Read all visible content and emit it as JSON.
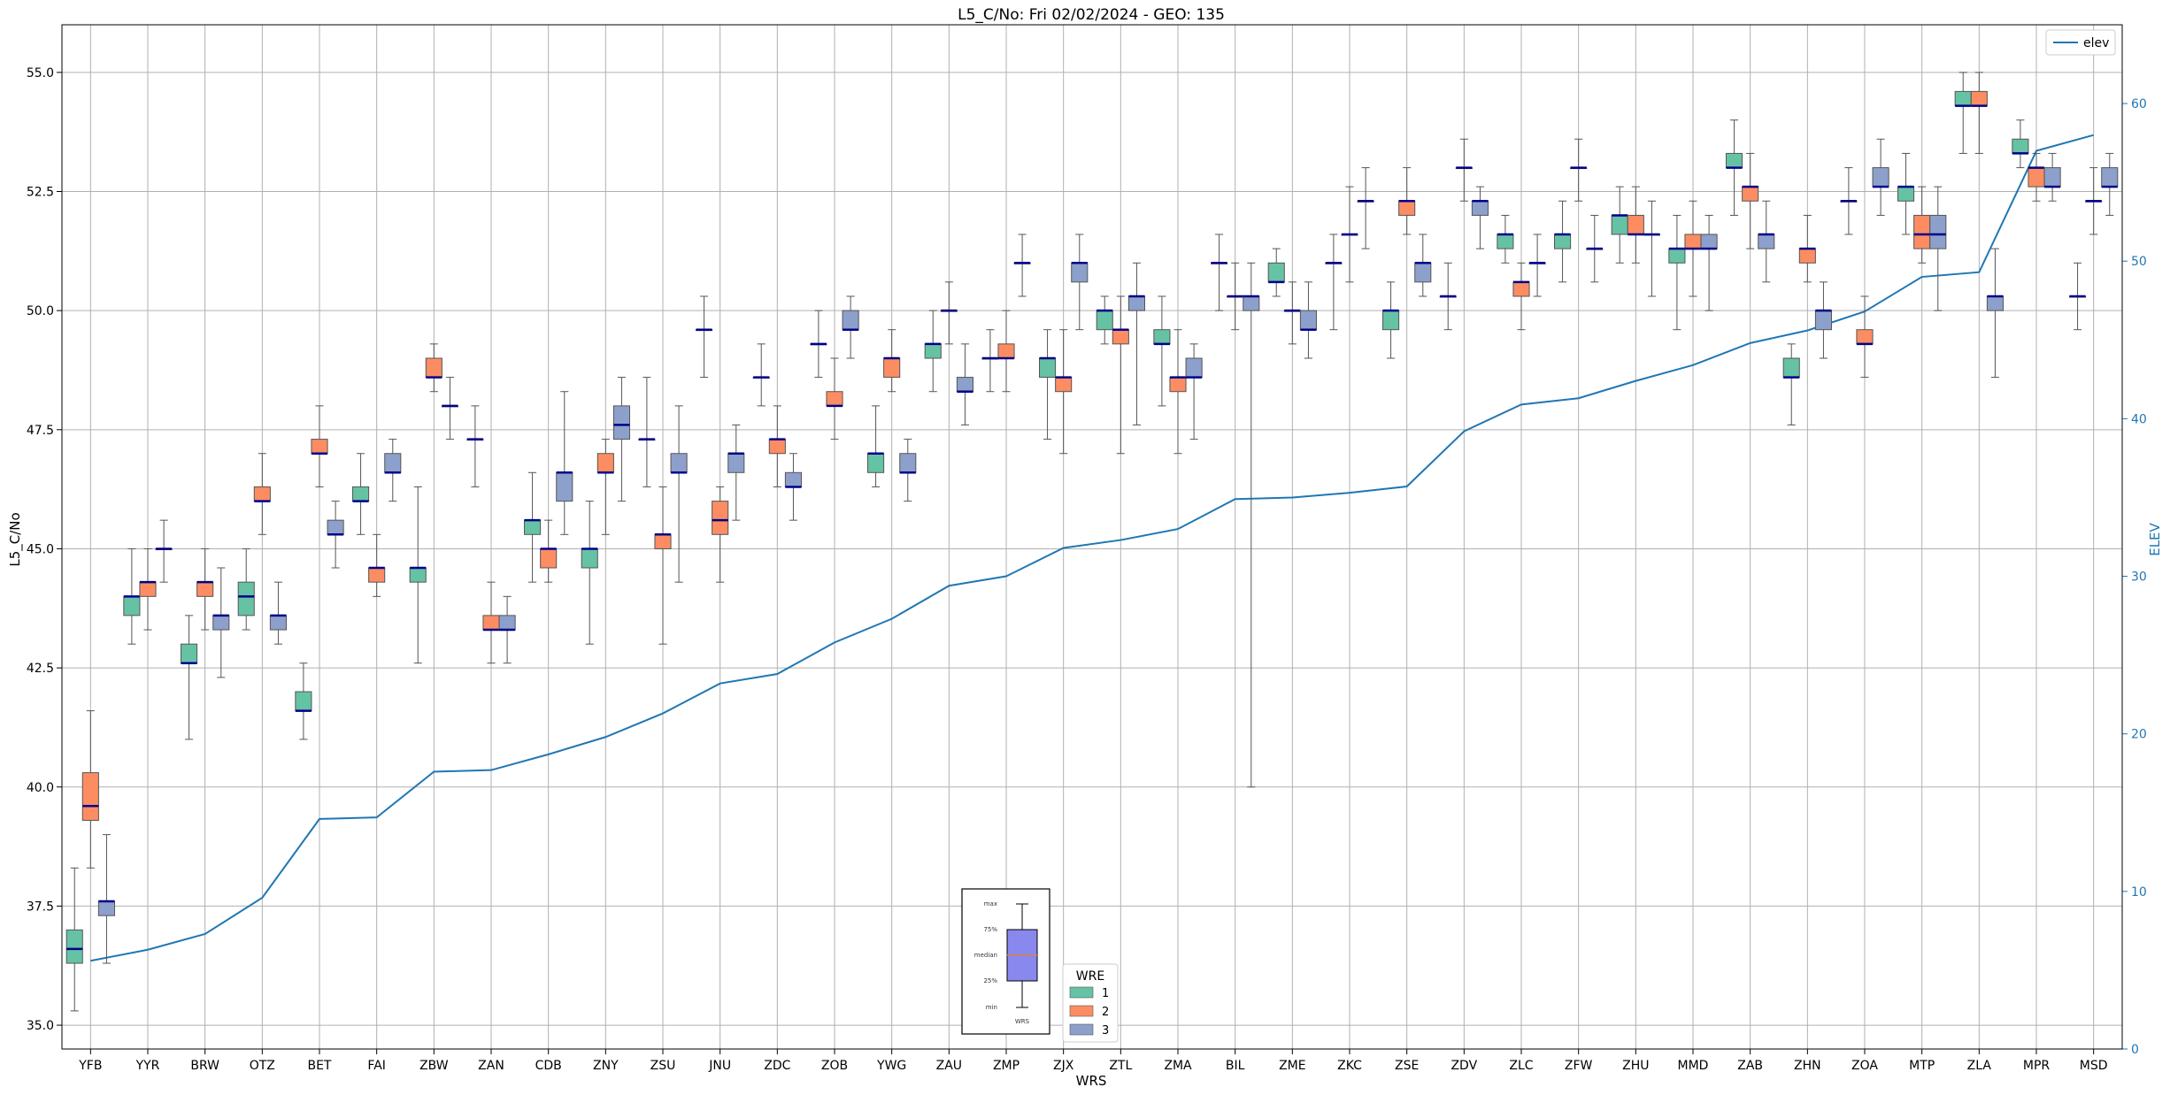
{
  "chart_data": {
    "type": "box",
    "title": "L5_C/No: Fri 02/02/2024 - GEO: 135",
    "xlabel": "WRS",
    "ylabel": "L5_C/No",
    "y2label": "ELEV",
    "ylim": [
      34.5,
      56.0
    ],
    "y2lim": [
      0,
      65
    ],
    "yticks": [
      "35.0",
      "37.5",
      "40.0",
      "42.5",
      "45.0",
      "47.5",
      "50.0",
      "52.5",
      "55.0"
    ],
    "y2ticks": [
      "0",
      "10",
      "20",
      "30",
      "40",
      "50",
      "60"
    ],
    "grid": true,
    "categories": [
      "YFB",
      "YYR",
      "BRW",
      "OTZ",
      "BET",
      "FAI",
      "ZBW",
      "ZAN",
      "CDB",
      "ZNY",
      "ZSU",
      "JNU",
      "ZDC",
      "ZOB",
      "YWG",
      "ZAU",
      "ZMP",
      "ZJX",
      "ZTL",
      "ZMA",
      "BIL",
      "ZME",
      "ZKC",
      "ZSE",
      "ZDV",
      "ZLC",
      "ZFW",
      "ZHU",
      "MMD",
      "ZAB",
      "ZHN",
      "ZOA",
      "MTP",
      "ZLA",
      "MPR",
      "MSD"
    ],
    "elev_series": {
      "name": "elev",
      "color": "#1f77b4",
      "values": [
        5.6,
        6.3,
        7.3,
        9.6,
        14.6,
        14.7,
        17.6,
        17.7,
        18.7,
        19.8,
        21.3,
        23.2,
        23.8,
        25.8,
        27.3,
        29.4,
        30.0,
        31.8,
        32.3,
        33.0,
        34.9,
        35.0,
        35.3,
        35.7,
        39.2,
        40.9,
        41.3,
        42.4,
        43.4,
        44.8,
        45.6,
        46.8,
        49.0,
        49.3,
        57.0,
        58.0
      ]
    },
    "legend_wre": {
      "title": "WRE",
      "entries": [
        {
          "label": "1",
          "color": "#66c2a5"
        },
        {
          "label": "2",
          "color": "#fc8d62"
        },
        {
          "label": "3",
          "color": "#8da0cb"
        }
      ]
    },
    "legend_elev": "elev",
    "box_legend_labels": [
      "max",
      "75%",
      "median",
      "25%",
      "min"
    ],
    "box_legend_xlabel": "WRS",
    "boxes": [
      {
        "cat": "YFB",
        "wre": 1,
        "min": 35.3,
        "q1": 36.3,
        "med": 36.6,
        "q3": 37.0,
        "max": 38.3
      },
      {
        "cat": "YFB",
        "wre": 2,
        "min": 38.3,
        "q1": 39.3,
        "med": 39.6,
        "q3": 40.3,
        "max": 41.6
      },
      {
        "cat": "YFB",
        "wre": 3,
        "min": 36.3,
        "q1": 37.3,
        "med": 37.6,
        "q3": 37.6,
        "max": 39.0
      },
      {
        "cat": "YYR",
        "wre": 1,
        "min": 43.0,
        "q1": 43.6,
        "med": 44.0,
        "q3": 44.0,
        "max": 45.0
      },
      {
        "cat": "YYR",
        "wre": 2,
        "min": 43.3,
        "q1": 44.0,
        "med": 44.3,
        "q3": 44.3,
        "max": 45.0
      },
      {
        "cat": "YYR",
        "wre": 3,
        "min": 44.3,
        "q1": 45.0,
        "med": 45.0,
        "q3": 45.0,
        "max": 45.6
      },
      {
        "cat": "BRW",
        "wre": 1,
        "min": 41.0,
        "q1": 42.6,
        "med": 42.6,
        "q3": 43.0,
        "max": 43.6
      },
      {
        "cat": "BRW",
        "wre": 2,
        "min": 43.3,
        "q1": 44.0,
        "med": 44.3,
        "q3": 44.3,
        "max": 45.0
      },
      {
        "cat": "BRW",
        "wre": 3,
        "min": 42.3,
        "q1": 43.3,
        "med": 43.6,
        "q3": 43.6,
        "max": 44.6
      },
      {
        "cat": "OTZ",
        "wre": 1,
        "min": 43.3,
        "q1": 43.6,
        "med": 44.0,
        "q3": 44.3,
        "max": 45.0
      },
      {
        "cat": "OTZ",
        "wre": 2,
        "min": 45.3,
        "q1": 46.0,
        "med": 46.0,
        "q3": 46.3,
        "max": 47.0
      },
      {
        "cat": "OTZ",
        "wre": 3,
        "min": 43.0,
        "q1": 43.3,
        "med": 43.6,
        "q3": 43.6,
        "max": 44.3
      },
      {
        "cat": "BET",
        "wre": 1,
        "min": 41.0,
        "q1": 41.6,
        "med": 41.6,
        "q3": 42.0,
        "max": 42.6
      },
      {
        "cat": "BET",
        "wre": 2,
        "min": 46.3,
        "q1": 47.0,
        "med": 47.0,
        "q3": 47.3,
        "max": 48.0
      },
      {
        "cat": "BET",
        "wre": 3,
        "min": 44.6,
        "q1": 45.3,
        "med": 45.3,
        "q3": 45.6,
        "max": 46.0
      },
      {
        "cat": "FAI",
        "wre": 1,
        "min": 45.3,
        "q1": 46.0,
        "med": 46.0,
        "q3": 46.3,
        "max": 47.0
      },
      {
        "cat": "FAI",
        "wre": 2,
        "min": 44.0,
        "q1": 44.3,
        "med": 44.6,
        "q3": 44.6,
        "max": 45.3
      },
      {
        "cat": "FAI",
        "wre": 3,
        "min": 46.0,
        "q1": 46.6,
        "med": 46.6,
        "q3": 47.0,
        "max": 47.3
      },
      {
        "cat": "ZBW",
        "wre": 1,
        "min": 42.6,
        "q1": 44.3,
        "med": 44.6,
        "q3": 44.6,
        "max": 46.3
      },
      {
        "cat": "ZBW",
        "wre": 2,
        "min": 48.3,
        "q1": 48.6,
        "med": 48.6,
        "q3": 49.0,
        "max": 49.3
      },
      {
        "cat": "ZBW",
        "wre": 3,
        "min": 47.3,
        "q1": 48.0,
        "med": 48.0,
        "q3": 48.0,
        "max": 48.6
      },
      {
        "cat": "ZAN",
        "wre": 1,
        "min": 46.3,
        "q1": 47.3,
        "med": 47.3,
        "q3": 47.3,
        "max": 48.0
      },
      {
        "cat": "ZAN",
        "wre": 2,
        "min": 42.6,
        "q1": 43.3,
        "med": 43.3,
        "q3": 43.6,
        "max": 44.3
      },
      {
        "cat": "ZAN",
        "wre": 3,
        "min": 42.6,
        "q1": 43.3,
        "med": 43.3,
        "q3": 43.6,
        "max": 44.0
      },
      {
        "cat": "CDB",
        "wre": 1,
        "min": 44.3,
        "q1": 45.3,
        "med": 45.6,
        "q3": 45.6,
        "max": 46.6
      },
      {
        "cat": "CDB",
        "wre": 2,
        "min": 44.3,
        "q1": 44.6,
        "med": 45.0,
        "q3": 45.0,
        "max": 45.6
      },
      {
        "cat": "CDB",
        "wre": 3,
        "min": 45.3,
        "q1": 46.0,
        "med": 46.6,
        "q3": 46.6,
        "max": 48.3
      },
      {
        "cat": "ZNY",
        "wre": 1,
        "min": 43.0,
        "q1": 44.6,
        "med": 45.0,
        "q3": 45.0,
        "max": 46.0
      },
      {
        "cat": "ZNY",
        "wre": 2,
        "min": 45.3,
        "q1": 46.6,
        "med": 46.6,
        "q3": 47.0,
        "max": 47.3
      },
      {
        "cat": "ZNY",
        "wre": 3,
        "min": 46.0,
        "q1": 47.3,
        "med": 47.6,
        "q3": 48.0,
        "max": 48.6
      },
      {
        "cat": "ZSU",
        "wre": 1,
        "min": 46.3,
        "q1": 47.3,
        "med": 47.3,
        "q3": 47.3,
        "max": 48.6
      },
      {
        "cat": "ZSU",
        "wre": 2,
        "min": 43.0,
        "q1": 45.0,
        "med": 45.3,
        "q3": 45.3,
        "max": 46.3
      },
      {
        "cat": "ZSU",
        "wre": 3,
        "min": 44.3,
        "q1": 46.6,
        "med": 46.6,
        "q3": 47.0,
        "max": 48.0
      },
      {
        "cat": "JNU",
        "wre": 1,
        "min": 48.6,
        "q1": 49.6,
        "med": 49.6,
        "q3": 49.6,
        "max": 50.3
      },
      {
        "cat": "JNU",
        "wre": 2,
        "min": 44.3,
        "q1": 45.3,
        "med": 45.6,
        "q3": 46.0,
        "max": 46.3
      },
      {
        "cat": "JNU",
        "wre": 3,
        "min": 45.6,
        "q1": 46.6,
        "med": 47.0,
        "q3": 47.0,
        "max": 47.6
      },
      {
        "cat": "ZDC",
        "wre": 1,
        "min": 48.0,
        "q1": 48.6,
        "med": 48.6,
        "q3": 48.6,
        "max": 49.3
      },
      {
        "cat": "ZDC",
        "wre": 2,
        "min": 46.3,
        "q1": 47.0,
        "med": 47.3,
        "q3": 47.3,
        "max": 48.0
      },
      {
        "cat": "ZDC",
        "wre": 3,
        "min": 45.6,
        "q1": 46.3,
        "med": 46.3,
        "q3": 46.6,
        "max": 47.0
      },
      {
        "cat": "ZOB",
        "wre": 1,
        "min": 48.6,
        "q1": 49.3,
        "med": 49.3,
        "q3": 49.3,
        "max": 50.0
      },
      {
        "cat": "ZOB",
        "wre": 2,
        "min": 47.3,
        "q1": 48.0,
        "med": 48.0,
        "q3": 48.3,
        "max": 49.0
      },
      {
        "cat": "ZOB",
        "wre": 3,
        "min": 49.0,
        "q1": 49.6,
        "med": 49.6,
        "q3": 50.0,
        "max": 50.3
      },
      {
        "cat": "YWG",
        "wre": 1,
        "min": 46.3,
        "q1": 46.6,
        "med": 47.0,
        "q3": 47.0,
        "max": 48.0
      },
      {
        "cat": "YWG",
        "wre": 2,
        "min": 48.3,
        "q1": 48.6,
        "med": 49.0,
        "q3": 49.0,
        "max": 49.6
      },
      {
        "cat": "YWG",
        "wre": 3,
        "min": 46.0,
        "q1": 46.6,
        "med": 46.6,
        "q3": 47.0,
        "max": 47.3
      },
      {
        "cat": "ZAU",
        "wre": 1,
        "min": 48.3,
        "q1": 49.0,
        "med": 49.3,
        "q3": 49.3,
        "max": 50.0
      },
      {
        "cat": "ZAU",
        "wre": 2,
        "min": 49.3,
        "q1": 50.0,
        "med": 50.0,
        "q3": 50.0,
        "max": 50.6
      },
      {
        "cat": "ZAU",
        "wre": 3,
        "min": 47.6,
        "q1": 48.3,
        "med": 48.3,
        "q3": 48.6,
        "max": 49.3
      },
      {
        "cat": "ZMP",
        "wre": 1,
        "min": 48.3,
        "q1": 49.0,
        "med": 49.0,
        "q3": 49.0,
        "max": 49.6
      },
      {
        "cat": "ZMP",
        "wre": 2,
        "min": 48.3,
        "q1": 49.0,
        "med": 49.0,
        "q3": 49.3,
        "max": 50.0
      },
      {
        "cat": "ZMP",
        "wre": 3,
        "min": 50.3,
        "q1": 51.0,
        "med": 51.0,
        "q3": 51.0,
        "max": 51.6
      },
      {
        "cat": "ZJX",
        "wre": 1,
        "min": 47.3,
        "q1": 48.6,
        "med": 49.0,
        "q3": 49.0,
        "max": 49.6
      },
      {
        "cat": "ZJX",
        "wre": 2,
        "min": 47.0,
        "q1": 48.3,
        "med": 48.6,
        "q3": 48.6,
        "max": 49.6
      },
      {
        "cat": "ZJX",
        "wre": 3,
        "min": 49.6,
        "q1": 50.6,
        "med": 51.0,
        "q3": 51.0,
        "max": 51.6
      },
      {
        "cat": "ZTL",
        "wre": 1,
        "min": 49.3,
        "q1": 49.6,
        "med": 50.0,
        "q3": 50.0,
        "max": 50.3
      },
      {
        "cat": "ZTL",
        "wre": 2,
        "min": 47.0,
        "q1": 49.3,
        "med": 49.6,
        "q3": 49.6,
        "max": 50.3
      },
      {
        "cat": "ZTL",
        "wre": 3,
        "min": 47.6,
        "q1": 50.0,
        "med": 50.3,
        "q3": 50.3,
        "max": 51.0
      },
      {
        "cat": "ZMA",
        "wre": 1,
        "min": 48.0,
        "q1": 49.3,
        "med": 49.3,
        "q3": 49.6,
        "max": 50.3
      },
      {
        "cat": "ZMA",
        "wre": 2,
        "min": 47.0,
        "q1": 48.3,
        "med": 48.6,
        "q3": 48.6,
        "max": 49.6
      },
      {
        "cat": "ZMA",
        "wre": 3,
        "min": 47.3,
        "q1": 48.6,
        "med": 48.6,
        "q3": 49.0,
        "max": 49.3
      },
      {
        "cat": "BIL",
        "wre": 1,
        "min": 50.0,
        "q1": 51.0,
        "med": 51.0,
        "q3": 51.0,
        "max": 51.6
      },
      {
        "cat": "BIL",
        "wre": 2,
        "min": 49.6,
        "q1": 50.3,
        "med": 50.3,
        "q3": 50.3,
        "max": 51.0
      },
      {
        "cat": "BIL",
        "wre": 3,
        "min": 40.0,
        "q1": 50.0,
        "med": 50.3,
        "q3": 50.3,
        "max": 51.0
      },
      {
        "cat": "ZME",
        "wre": 1,
        "min": 50.3,
        "q1": 50.6,
        "med": 50.6,
        "q3": 51.0,
        "max": 51.3
      },
      {
        "cat": "ZME",
        "wre": 2,
        "min": 49.3,
        "q1": 50.0,
        "med": 50.0,
        "q3": 50.0,
        "max": 50.6
      },
      {
        "cat": "ZME",
        "wre": 3,
        "min": 49.0,
        "q1": 49.6,
        "med": 49.6,
        "q3": 50.0,
        "max": 50.6
      },
      {
        "cat": "ZKC",
        "wre": 1,
        "min": 49.6,
        "q1": 51.0,
        "med": 51.0,
        "q3": 51.0,
        "max": 51.6
      },
      {
        "cat": "ZKC",
        "wre": 2,
        "min": 50.6,
        "q1": 51.6,
        "med": 51.6,
        "q3": 51.6,
        "max": 52.6
      },
      {
        "cat": "ZKC",
        "wre": 3,
        "min": 51.3,
        "q1": 52.3,
        "med": 52.3,
        "q3": 52.3,
        "max": 53.0
      },
      {
        "cat": "ZSE",
        "wre": 1,
        "min": 49.0,
        "q1": 49.6,
        "med": 50.0,
        "q3": 50.0,
        "max": 50.6
      },
      {
        "cat": "ZSE",
        "wre": 2,
        "min": 51.6,
        "q1": 52.0,
        "med": 52.3,
        "q3": 52.3,
        "max": 53.0
      },
      {
        "cat": "ZSE",
        "wre": 3,
        "min": 50.3,
        "q1": 50.6,
        "med": 51.0,
        "q3": 51.0,
        "max": 51.6
      },
      {
        "cat": "ZDV",
        "wre": 1,
        "min": 49.6,
        "q1": 50.3,
        "med": 50.3,
        "q3": 50.3,
        "max": 51.0
      },
      {
        "cat": "ZDV",
        "wre": 2,
        "min": 52.3,
        "q1": 53.0,
        "med": 53.0,
        "q3": 53.0,
        "max": 53.6
      },
      {
        "cat": "ZDV",
        "wre": 3,
        "min": 51.3,
        "q1": 52.0,
        "med": 52.3,
        "q3": 52.3,
        "max": 52.6
      },
      {
        "cat": "ZLC",
        "wre": 1,
        "min": 51.0,
        "q1": 51.3,
        "med": 51.6,
        "q3": 51.6,
        "max": 52.0
      },
      {
        "cat": "ZLC",
        "wre": 2,
        "min": 49.6,
        "q1": 50.3,
        "med": 50.6,
        "q3": 50.6,
        "max": 51.0
      },
      {
        "cat": "ZLC",
        "wre": 3,
        "min": 50.3,
        "q1": 51.0,
        "med": 51.0,
        "q3": 51.0,
        "max": 51.6
      },
      {
        "cat": "ZFW",
        "wre": 1,
        "min": 50.6,
        "q1": 51.3,
        "med": 51.6,
        "q3": 51.6,
        "max": 52.3
      },
      {
        "cat": "ZFW",
        "wre": 2,
        "min": 52.3,
        "q1": 53.0,
        "med": 53.0,
        "q3": 53.0,
        "max": 53.6
      },
      {
        "cat": "ZFW",
        "wre": 3,
        "min": 50.6,
        "q1": 51.3,
        "med": 51.3,
        "q3": 51.3,
        "max": 52.0
      },
      {
        "cat": "ZHU",
        "wre": 1,
        "min": 51.0,
        "q1": 51.6,
        "med": 52.0,
        "q3": 52.0,
        "max": 52.6
      },
      {
        "cat": "ZHU",
        "wre": 2,
        "min": 51.0,
        "q1": 51.6,
        "med": 51.6,
        "q3": 52.0,
        "max": 52.6
      },
      {
        "cat": "ZHU",
        "wre": 3,
        "min": 50.3,
        "q1": 51.6,
        "med": 51.6,
        "q3": 51.6,
        "max": 52.3
      },
      {
        "cat": "MMD",
        "wre": 1,
        "min": 49.6,
        "q1": 51.0,
        "med": 51.3,
        "q3": 51.3,
        "max": 52.0
      },
      {
        "cat": "MMD",
        "wre": 2,
        "min": 50.3,
        "q1": 51.3,
        "med": 51.3,
        "q3": 51.6,
        "max": 52.3
      },
      {
        "cat": "MMD",
        "wre": 3,
        "min": 50.0,
        "q1": 51.3,
        "med": 51.3,
        "q3": 51.6,
        "max": 52.0
      },
      {
        "cat": "ZAB",
        "wre": 1,
        "min": 52.0,
        "q1": 53.0,
        "med": 53.0,
        "q3": 53.3,
        "max": 54.0
      },
      {
        "cat": "ZAB",
        "wre": 2,
        "min": 51.3,
        "q1": 52.3,
        "med": 52.6,
        "q3": 52.6,
        "max": 53.3
      },
      {
        "cat": "ZAB",
        "wre": 3,
        "min": 50.6,
        "q1": 51.3,
        "med": 51.6,
        "q3": 51.6,
        "max": 52.3
      },
      {
        "cat": "ZHN",
        "wre": 1,
        "min": 47.6,
        "q1": 48.6,
        "med": 48.6,
        "q3": 49.0,
        "max": 49.3
      },
      {
        "cat": "ZHN",
        "wre": 2,
        "min": 50.6,
        "q1": 51.0,
        "med": 51.3,
        "q3": 51.3,
        "max": 52.0
      },
      {
        "cat": "ZHN",
        "wre": 3,
        "min": 49.0,
        "q1": 49.6,
        "med": 50.0,
        "q3": 50.0,
        "max": 50.6
      },
      {
        "cat": "ZOA",
        "wre": 1,
        "min": 51.6,
        "q1": 52.3,
        "med": 52.3,
        "q3": 52.3,
        "max": 53.0
      },
      {
        "cat": "ZOA",
        "wre": 2,
        "min": 48.6,
        "q1": 49.3,
        "med": 49.3,
        "q3": 49.6,
        "max": 50.3
      },
      {
        "cat": "ZOA",
        "wre": 3,
        "min": 52.0,
        "q1": 52.6,
        "med": 52.6,
        "q3": 53.0,
        "max": 53.6
      },
      {
        "cat": "MTP",
        "wre": 1,
        "min": 51.6,
        "q1": 52.3,
        "med": 52.6,
        "q3": 52.6,
        "max": 53.3
      },
      {
        "cat": "MTP",
        "wre": 2,
        "min": 51.0,
        "q1": 51.3,
        "med": 51.6,
        "q3": 52.0,
        "max": 52.6
      },
      {
        "cat": "MTP",
        "wre": 3,
        "min": 50.0,
        "q1": 51.3,
        "med": 51.6,
        "q3": 52.0,
        "max": 52.6
      },
      {
        "cat": "ZLA",
        "wre": 1,
        "min": 53.3,
        "q1": 54.3,
        "med": 54.3,
        "q3": 54.6,
        "max": 55.0
      },
      {
        "cat": "ZLA",
        "wre": 2,
        "min": 53.3,
        "q1": 54.3,
        "med": 54.3,
        "q3": 54.6,
        "max": 55.0
      },
      {
        "cat": "ZLA",
        "wre": 3,
        "min": 48.6,
        "q1": 50.0,
        "med": 50.3,
        "q3": 50.3,
        "max": 51.3
      },
      {
        "cat": "MPR",
        "wre": 1,
        "min": 53.0,
        "q1": 53.3,
        "med": 53.3,
        "q3": 53.6,
        "max": 54.0
      },
      {
        "cat": "MPR",
        "wre": 2,
        "min": 52.3,
        "q1": 52.6,
        "med": 53.0,
        "q3": 53.0,
        "max": 53.3
      },
      {
        "cat": "MPR",
        "wre": 3,
        "min": 52.3,
        "q1": 52.6,
        "med": 52.6,
        "q3": 53.0,
        "max": 53.3
      },
      {
        "cat": "MSD",
        "wre": 1,
        "min": 49.6,
        "q1": 50.3,
        "med": 50.3,
        "q3": 50.3,
        "max": 51.0
      },
      {
        "cat": "MSD",
        "wre": 2,
        "min": 51.6,
        "q1": 52.3,
        "med": 52.3,
        "q3": 52.3,
        "max": 53.0
      },
      {
        "cat": "MSD",
        "wre": 3,
        "min": 52.0,
        "q1": 52.6,
        "med": 52.6,
        "q3": 53.0,
        "max": 53.3
      }
    ]
  }
}
